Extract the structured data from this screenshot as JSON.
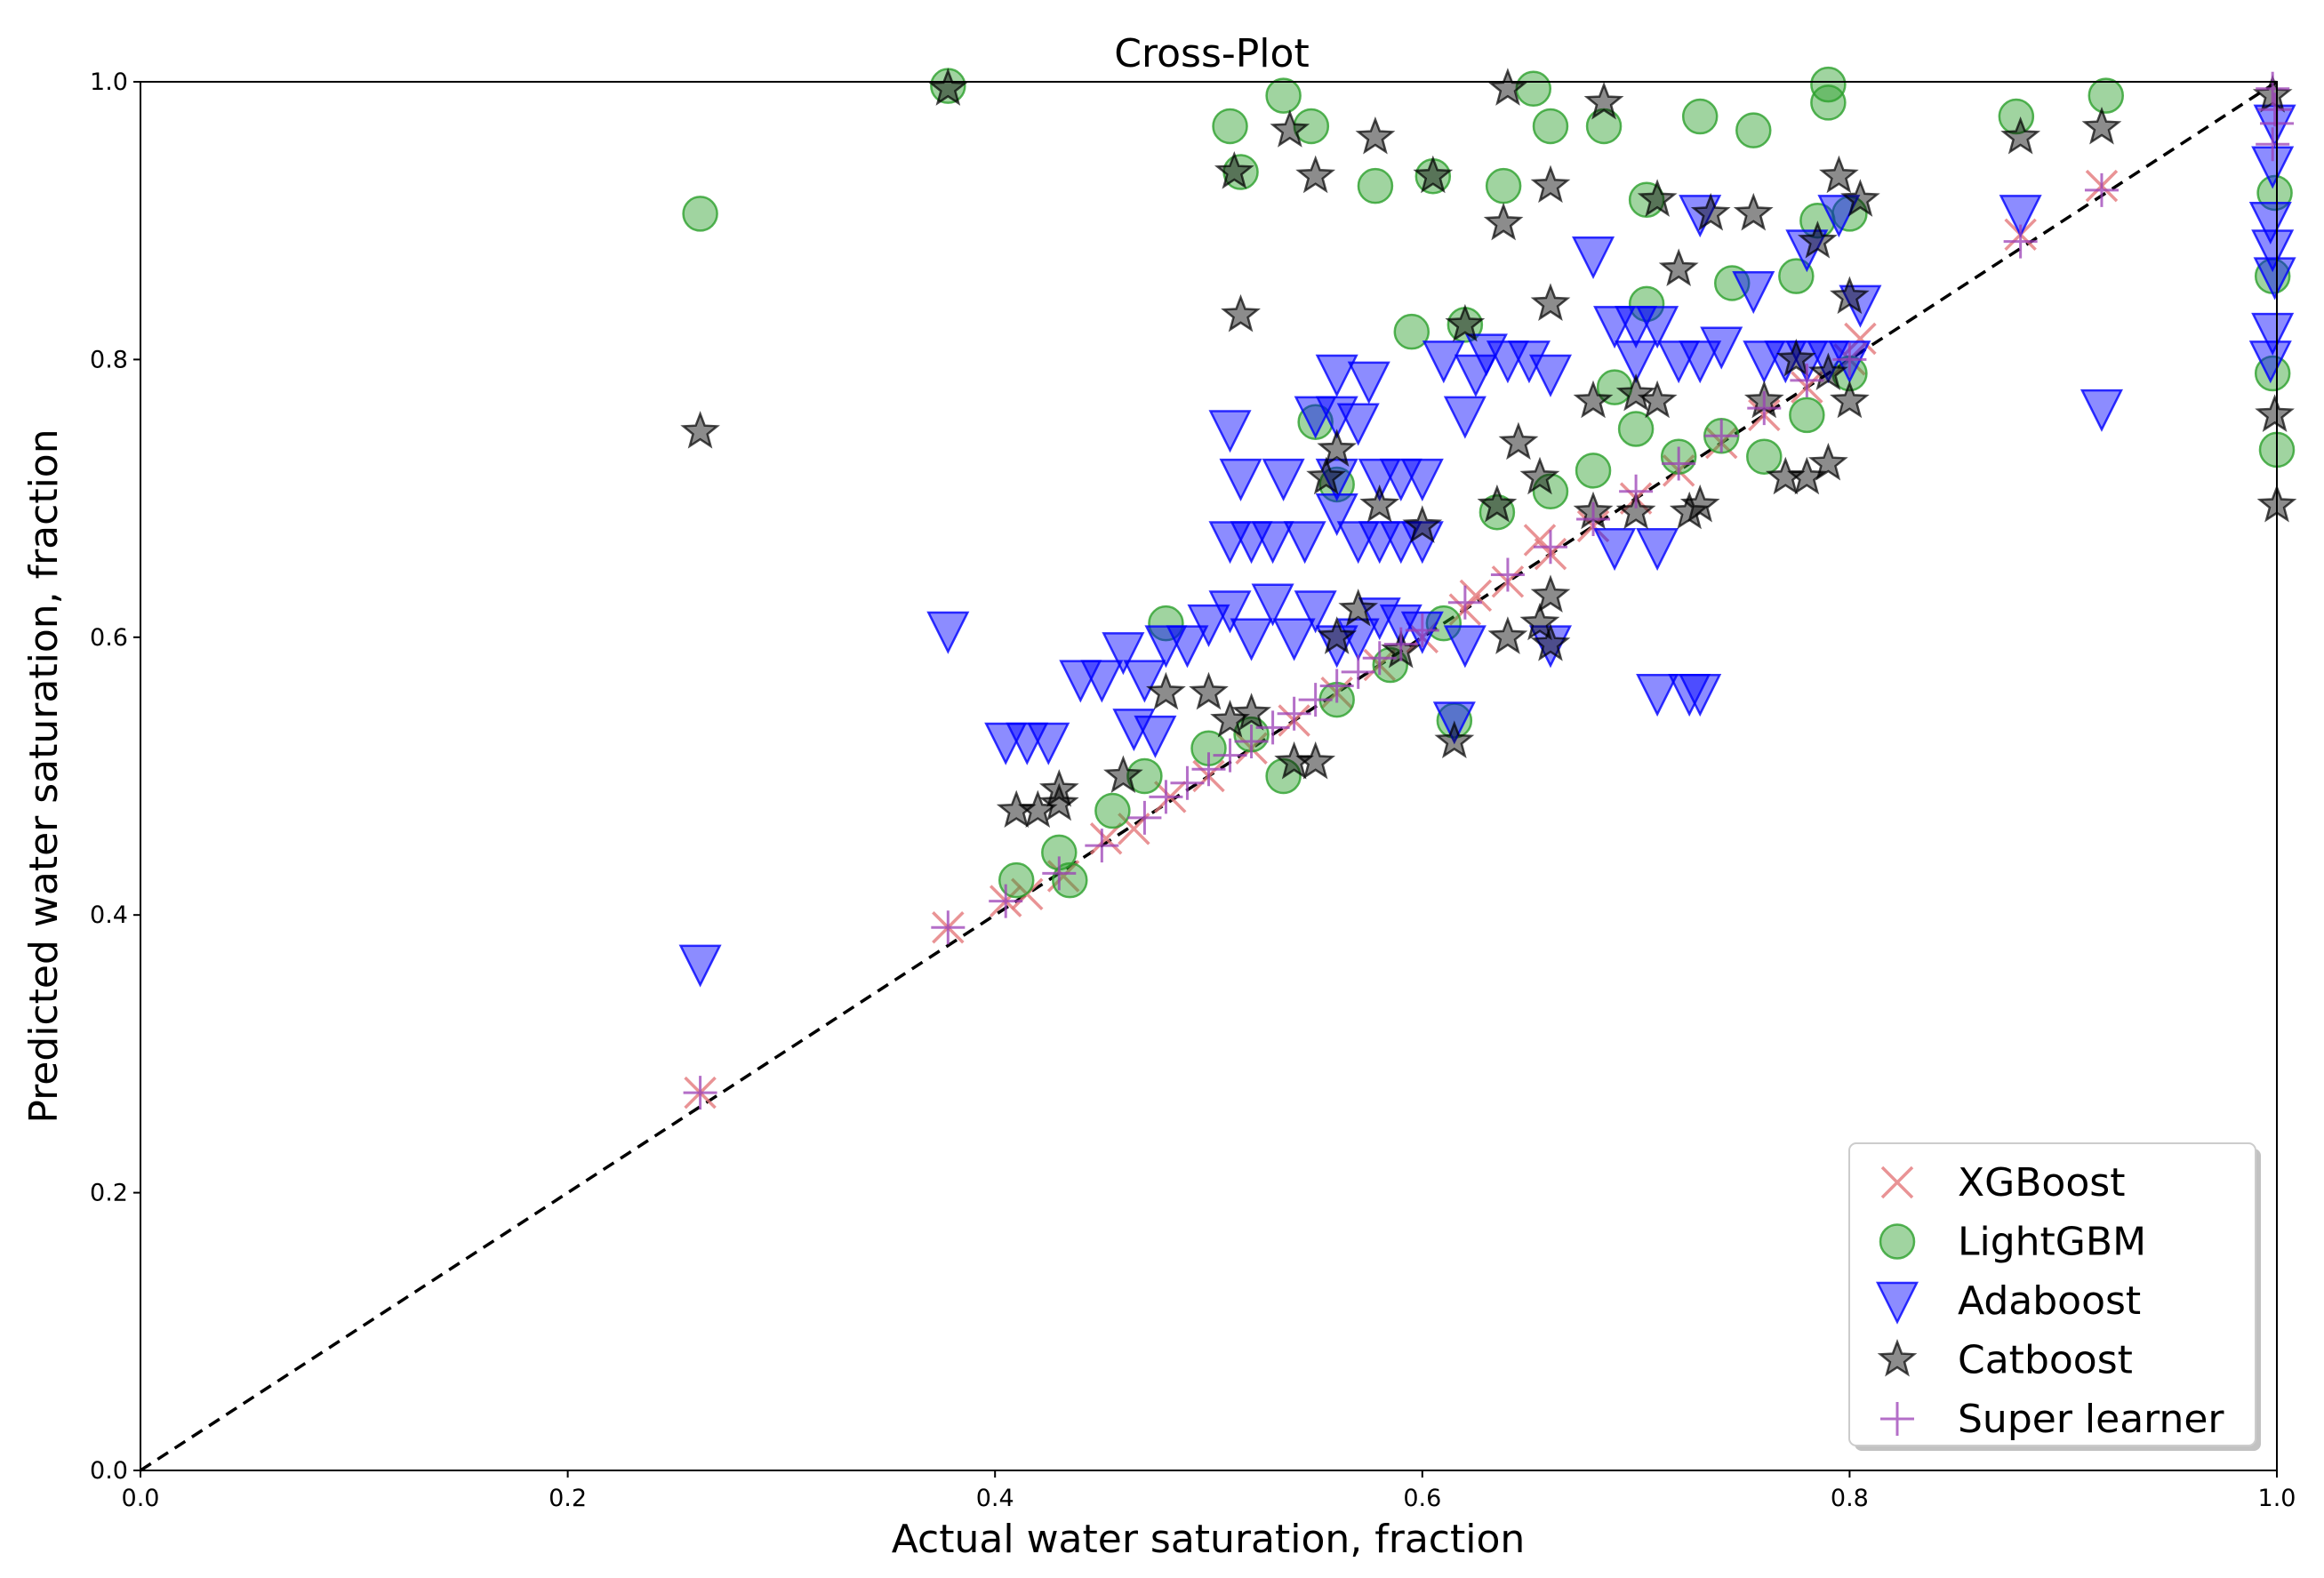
{
  "chart_data": {
    "type": "scatter",
    "title": "Cross-Plot",
    "xlabel": "Actual water saturation, fraction",
    "ylabel": "Predicted water saturation, fraction",
    "xlim": [
      0.0,
      1.0
    ],
    "ylim": [
      0.0,
      1.0
    ],
    "xticks": [
      "0.0",
      "0.2",
      "0.4",
      "0.6",
      "0.8",
      "1.0"
    ],
    "yticks": [
      "0.0",
      "0.2",
      "0.4",
      "0.6",
      "0.8",
      "1.0"
    ],
    "grid": false,
    "legend_position": "bottom-right",
    "reference_line": {
      "style": "dashed",
      "color": "#000000",
      "from": [
        0,
        0
      ],
      "to": [
        1,
        1
      ]
    },
    "series": [
      {
        "name": "XGBoost",
        "marker": "x",
        "color": "#e3787b",
        "points": [
          [
            0.262,
            0.272
          ],
          [
            0.378,
            0.391
          ],
          [
            0.405,
            0.41
          ],
          [
            0.415,
            0.415
          ],
          [
            0.432,
            0.428
          ],
          [
            0.452,
            0.455
          ],
          [
            0.465,
            0.462
          ],
          [
            0.482,
            0.485
          ],
          [
            0.5,
            0.5
          ],
          [
            0.52,
            0.52
          ],
          [
            0.54,
            0.54
          ],
          [
            0.56,
            0.56
          ],
          [
            0.58,
            0.58
          ],
          [
            0.6,
            0.6
          ],
          [
            0.62,
            0.62
          ],
          [
            0.64,
            0.64
          ],
          [
            0.66,
            0.66
          ],
          [
            0.68,
            0.68
          ],
          [
            0.7,
            0.7
          ],
          [
            0.72,
            0.72
          ],
          [
            0.74,
            0.74
          ],
          [
            0.76,
            0.76
          ],
          [
            0.78,
            0.78
          ],
          [
            0.8,
            0.8
          ],
          [
            0.88,
            0.89
          ],
          [
            0.918,
            0.925
          ],
          [
            0.625,
            0.63
          ],
          [
            0.655,
            0.67
          ],
          [
            0.805,
            0.815
          ]
        ]
      },
      {
        "name": "LightGBM",
        "marker": "o",
        "color": "#2ca02c",
        "points": [
          [
            0.262,
            0.905
          ],
          [
            0.378,
            0.997
          ],
          [
            0.51,
            0.968
          ],
          [
            0.535,
            0.99
          ],
          [
            0.548,
            0.968
          ],
          [
            0.515,
            0.935
          ],
          [
            0.578,
            0.925
          ],
          [
            0.605,
            0.932
          ],
          [
            0.638,
            0.925
          ],
          [
            0.652,
            0.995
          ],
          [
            0.66,
            0.968
          ],
          [
            0.685,
            0.968
          ],
          [
            0.73,
            0.975
          ],
          [
            0.755,
            0.965
          ],
          [
            0.79,
            0.998
          ],
          [
            0.92,
            0.99
          ],
          [
            0.878,
            0.975
          ],
          [
            0.79,
            0.985
          ],
          [
            0.775,
            0.86
          ],
          [
            0.785,
            0.9
          ],
          [
            0.8,
            0.905
          ],
          [
            0.705,
            0.915
          ],
          [
            0.745,
            0.855
          ],
          [
            0.705,
            0.84
          ],
          [
            0.595,
            0.82
          ],
          [
            0.62,
            0.825
          ],
          [
            0.69,
            0.78
          ],
          [
            0.7,
            0.75
          ],
          [
            0.68,
            0.72
          ],
          [
            0.635,
            0.69
          ],
          [
            0.66,
            0.705
          ],
          [
            0.76,
            0.73
          ],
          [
            0.78,
            0.76
          ],
          [
            0.8,
            0.79
          ],
          [
            0.55,
            0.755
          ],
          [
            0.56,
            0.71
          ],
          [
            0.48,
            0.61
          ],
          [
            0.615,
            0.54
          ],
          [
            0.535,
            0.5
          ],
          [
            0.47,
            0.5
          ],
          [
            0.455,
            0.475
          ],
          [
            0.43,
            0.445
          ],
          [
            0.435,
            0.425
          ],
          [
            0.41,
            0.425
          ],
          [
            0.5,
            0.52
          ],
          [
            0.52,
            0.53
          ],
          [
            0.56,
            0.555
          ],
          [
            0.585,
            0.58
          ],
          [
            0.61,
            0.61
          ],
          [
            0.72,
            0.73
          ],
          [
            0.74,
            0.745
          ],
          [
            1.0,
            0.735
          ],
          [
            0.998,
            0.79
          ],
          [
            0.998,
            0.86
          ],
          [
            0.999,
            0.92
          ]
        ]
      },
      {
        "name": "Adaboost",
        "marker": "v",
        "color": "#0000ff",
        "points": [
          [
            0.262,
            0.365
          ],
          [
            0.378,
            0.605
          ],
          [
            0.405,
            0.525
          ],
          [
            0.415,
            0.525
          ],
          [
            0.425,
            0.525
          ],
          [
            0.44,
            0.57
          ],
          [
            0.45,
            0.57
          ],
          [
            0.46,
            0.59
          ],
          [
            0.47,
            0.57
          ],
          [
            0.48,
            0.595
          ],
          [
            0.49,
            0.595
          ],
          [
            0.5,
            0.61
          ],
          [
            0.51,
            0.62
          ],
          [
            0.52,
            0.6
          ],
          [
            0.53,
            0.625
          ],
          [
            0.54,
            0.6
          ],
          [
            0.55,
            0.62
          ],
          [
            0.56,
            0.595
          ],
          [
            0.57,
            0.6
          ],
          [
            0.58,
            0.615
          ],
          [
            0.59,
            0.61
          ],
          [
            0.6,
            0.605
          ],
          [
            0.465,
            0.535
          ],
          [
            0.475,
            0.53
          ],
          [
            0.51,
            0.67
          ],
          [
            0.52,
            0.67
          ],
          [
            0.53,
            0.67
          ],
          [
            0.545,
            0.67
          ],
          [
            0.56,
            0.69
          ],
          [
            0.57,
            0.67
          ],
          [
            0.58,
            0.67
          ],
          [
            0.59,
            0.67
          ],
          [
            0.6,
            0.67
          ],
          [
            0.515,
            0.715
          ],
          [
            0.535,
            0.715
          ],
          [
            0.56,
            0.715
          ],
          [
            0.58,
            0.715
          ],
          [
            0.59,
            0.715
          ],
          [
            0.6,
            0.715
          ],
          [
            0.51,
            0.75
          ],
          [
            0.55,
            0.76
          ],
          [
            0.56,
            0.76
          ],
          [
            0.57,
            0.755
          ],
          [
            0.56,
            0.79
          ],
          [
            0.575,
            0.785
          ],
          [
            0.61,
            0.8
          ],
          [
            0.625,
            0.79
          ],
          [
            0.63,
            0.805
          ],
          [
            0.64,
            0.8
          ],
          [
            0.65,
            0.8
          ],
          [
            0.66,
            0.79
          ],
          [
            0.62,
            0.76
          ],
          [
            0.68,
            0.875
          ],
          [
            0.69,
            0.825
          ],
          [
            0.7,
            0.825
          ],
          [
            0.71,
            0.825
          ],
          [
            0.7,
            0.8
          ],
          [
            0.72,
            0.8
          ],
          [
            0.73,
            0.8
          ],
          [
            0.74,
            0.81
          ],
          [
            0.76,
            0.8
          ],
          [
            0.77,
            0.8
          ],
          [
            0.78,
            0.8
          ],
          [
            0.79,
            0.8
          ],
          [
            0.8,
            0.8
          ],
          [
            0.73,
            0.905
          ],
          [
            0.755,
            0.85
          ],
          [
            0.78,
            0.88
          ],
          [
            0.795,
            0.905
          ],
          [
            0.805,
            0.84
          ],
          [
            0.88,
            0.905
          ],
          [
            0.918,
            0.765
          ],
          [
            0.71,
            0.56
          ],
          [
            0.725,
            0.56
          ],
          [
            0.73,
            0.56
          ],
          [
            0.66,
            0.595
          ],
          [
            0.62,
            0.595
          ],
          [
            0.615,
            0.54
          ],
          [
            0.69,
            0.665
          ],
          [
            0.71,
            0.665
          ],
          [
            0.998,
            0.82
          ],
          [
            0.999,
            0.86
          ],
          [
            0.997,
            0.9
          ],
          [
            0.998,
            0.94
          ],
          [
            0.999,
            0.97
          ],
          [
            0.997,
            0.8
          ],
          [
            0.998,
            0.88
          ]
        ]
      },
      {
        "name": "Catboost",
        "marker": "*",
        "color": "#000000",
        "points": [
          [
            0.262,
            0.748
          ],
          [
            0.378,
            0.995
          ],
          [
            0.515,
            0.832
          ],
          [
            0.512,
            0.935
          ],
          [
            0.538,
            0.965
          ],
          [
            0.55,
            0.932
          ],
          [
            0.578,
            0.96
          ],
          [
            0.605,
            0.932
          ],
          [
            0.638,
            0.898
          ],
          [
            0.64,
            0.995
          ],
          [
            0.66,
            0.925
          ],
          [
            0.685,
            0.985
          ],
          [
            0.71,
            0.915
          ],
          [
            0.735,
            0.905
          ],
          [
            0.755,
            0.905
          ],
          [
            0.795,
            0.932
          ],
          [
            0.805,
            0.915
          ],
          [
            0.88,
            0.96
          ],
          [
            0.918,
            0.967
          ],
          [
            0.72,
            0.865
          ],
          [
            0.66,
            0.84
          ],
          [
            0.645,
            0.74
          ],
          [
            0.635,
            0.695
          ],
          [
            0.655,
            0.715
          ],
          [
            0.555,
            0.715
          ],
          [
            0.56,
            0.735
          ],
          [
            0.58,
            0.695
          ],
          [
            0.6,
            0.68
          ],
          [
            0.68,
            0.77
          ],
          [
            0.7,
            0.775
          ],
          [
            0.71,
            0.77
          ],
          [
            0.725,
            0.69
          ],
          [
            0.73,
            0.695
          ],
          [
            0.77,
            0.715
          ],
          [
            0.78,
            0.715
          ],
          [
            0.79,
            0.725
          ],
          [
            0.8,
            0.77
          ],
          [
            0.785,
            0.885
          ],
          [
            0.8,
            0.845
          ],
          [
            0.68,
            0.69
          ],
          [
            0.7,
            0.69
          ],
          [
            0.62,
            0.825
          ],
          [
            0.41,
            0.475
          ],
          [
            0.42,
            0.475
          ],
          [
            0.43,
            0.49
          ],
          [
            0.43,
            0.48
          ],
          [
            0.46,
            0.5
          ],
          [
            0.48,
            0.56
          ],
          [
            0.5,
            0.56
          ],
          [
            0.51,
            0.54
          ],
          [
            0.52,
            0.545
          ],
          [
            0.54,
            0.51
          ],
          [
            0.55,
            0.51
          ],
          [
            0.56,
            0.6
          ],
          [
            0.57,
            0.62
          ],
          [
            0.59,
            0.59
          ],
          [
            0.615,
            0.525
          ],
          [
            0.64,
            0.6
          ],
          [
            0.655,
            0.61
          ],
          [
            0.66,
            0.63
          ],
          [
            0.66,
            0.595
          ],
          [
            0.76,
            0.77
          ],
          [
            0.775,
            0.8
          ],
          [
            0.79,
            0.79
          ],
          [
            1.0,
            0.695
          ],
          [
            0.999,
            0.76
          ],
          [
            0.998,
            0.99
          ]
        ]
      },
      {
        "name": "Super learner",
        "marker": "+",
        "color": "#9b3fb5",
        "points": [
          [
            0.262,
            0.272
          ],
          [
            0.378,
            0.391
          ],
          [
            0.405,
            0.41
          ],
          [
            0.43,
            0.43
          ],
          [
            0.45,
            0.45
          ],
          [
            0.47,
            0.47
          ],
          [
            0.48,
            0.485
          ],
          [
            0.49,
            0.495
          ],
          [
            0.5,
            0.505
          ],
          [
            0.51,
            0.515
          ],
          [
            0.52,
            0.525
          ],
          [
            0.53,
            0.535
          ],
          [
            0.54,
            0.545
          ],
          [
            0.55,
            0.555
          ],
          [
            0.56,
            0.565
          ],
          [
            0.57,
            0.575
          ],
          [
            0.58,
            0.585
          ],
          [
            0.59,
            0.595
          ],
          [
            0.6,
            0.605
          ],
          [
            0.62,
            0.625
          ],
          [
            0.64,
            0.645
          ],
          [
            0.66,
            0.665
          ],
          [
            0.68,
            0.685
          ],
          [
            0.7,
            0.705
          ],
          [
            0.72,
            0.725
          ],
          [
            0.74,
            0.745
          ],
          [
            0.76,
            0.765
          ],
          [
            0.78,
            0.785
          ],
          [
            0.8,
            0.8
          ],
          [
            0.88,
            0.885
          ],
          [
            0.918,
            0.922
          ],
          [
            0.998,
            0.995
          ],
          [
            0.999,
            0.98
          ],
          [
            1.0,
            0.97
          ],
          [
            0.998,
            0.955
          ]
        ]
      }
    ]
  }
}
